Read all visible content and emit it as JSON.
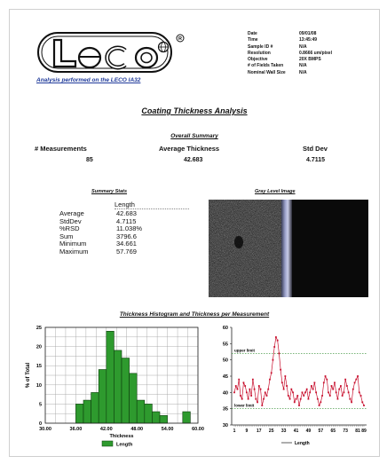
{
  "brand": {
    "logo_text": "Leco",
    "tagline": "Analysis performed on the LECO IA32"
  },
  "meta": {
    "rows": [
      {
        "label": "Date",
        "value": "09/01/08"
      },
      {
        "label": "Time",
        "value": "13:45:49"
      },
      {
        "label": "Sample ID #",
        "value": "N/A"
      },
      {
        "label": "Resolution",
        "value": "0.8666   um/pixel"
      },
      {
        "label": "Objective",
        "value": "20X BMPS"
      },
      {
        "label": "# of Fields Taken",
        "value": "N/A"
      },
      {
        "label": "Nominal Wall Size",
        "value": "N/A"
      }
    ]
  },
  "report": {
    "title": "Coating Thickness  Analysis",
    "overall_heading": "Overall Summary",
    "col1_label": "# Measurements",
    "col2_label": "Average  Thickness",
    "col3_label": "Std Dev",
    "col1_value": "85",
    "col2_value": "42.683",
    "col3_value": "4.7115"
  },
  "summary": {
    "heading": "Summary Stats",
    "column": "Length",
    "rows": [
      {
        "label": "Average",
        "value": "42.683"
      },
      {
        "label": "StdDev",
        "value": "4.7115"
      },
      {
        "label": "%RSD",
        "value": "11.038%"
      },
      {
        "label": "Sum",
        "value": "3796.6"
      },
      {
        "label": "Minimum",
        "value": "34.661"
      },
      {
        "label": "Maximum",
        "value": "57.769"
      }
    ]
  },
  "image_panel": {
    "heading": "Gray Level Image"
  },
  "section2": {
    "heading": "Thickness Histogram and Thickness per Measurement"
  },
  "chart_data": [
    {
      "type": "bar",
      "xlabel": "Thickness",
      "ylabel": "% of Total",
      "xlim": [
        30,
        60
      ],
      "ylim": [
        0,
        25
      ],
      "x_ticks": [
        "30.00",
        "36.00",
        "42.00",
        "48.00",
        "54.00",
        "60.00"
      ],
      "y_ticks": [
        "0",
        "5",
        "10",
        "15",
        "20",
        "25"
      ],
      "bin_edges": [
        34.5,
        36,
        37.5,
        39,
        40.5,
        42,
        43.5,
        45,
        46.5,
        48,
        49.5,
        51,
        52.5,
        54,
        55.5,
        57,
        58.5
      ],
      "values": [
        0,
        5,
        6,
        8,
        14,
        24,
        19,
        17,
        13,
        6,
        5,
        3,
        2,
        0,
        0,
        3,
        0
      ],
      "series": [
        {
          "name": "Length",
          "values": [
            0,
            5,
            6,
            8,
            14,
            24,
            19,
            17,
            13,
            6,
            5,
            3,
            2,
            0,
            0,
            3,
            0
          ]
        }
      ],
      "legend": "bottom",
      "colors": {
        "bar": "#2e9a2e",
        "bar_edge": "#0d3d0d"
      },
      "grid": true
    },
    {
      "type": "line",
      "ylim": [
        30,
        60
      ],
      "y_ticks": [
        "30",
        "35",
        "40",
        "45",
        "50",
        "55",
        "60"
      ],
      "x_ticks": [
        "1",
        "9",
        "17",
        "25",
        "33",
        "41",
        "49",
        "57",
        "65",
        "73",
        "81",
        "89"
      ],
      "upper_limit_label": "upper limit",
      "lower_limit_label": "lower limit",
      "upper_limit": 52,
      "lower_limit": 35,
      "series": [
        {
          "name": "Length",
          "color": "#c8102e",
          "values": [
            40,
            42,
            41,
            44,
            39,
            38,
            43,
            42,
            40,
            38,
            41,
            39,
            44,
            41,
            38,
            37,
            42,
            41,
            36,
            38,
            40,
            39,
            41,
            44,
            46,
            50,
            54,
            57,
            56,
            52,
            47,
            43,
            41,
            45,
            42,
            39,
            38,
            41,
            40,
            37,
            38,
            39,
            36,
            38,
            40,
            39,
            40,
            41,
            38,
            40,
            42,
            41,
            43,
            40,
            38,
            36,
            37,
            39,
            43,
            45,
            44,
            40,
            39,
            42,
            41,
            43,
            40,
            38,
            41,
            42,
            39,
            40,
            44,
            42,
            40,
            38,
            37,
            41,
            43,
            44,
            45,
            40,
            39,
            37,
            36
          ]
        }
      ],
      "legend": "bottom",
      "grid": false
    }
  ]
}
